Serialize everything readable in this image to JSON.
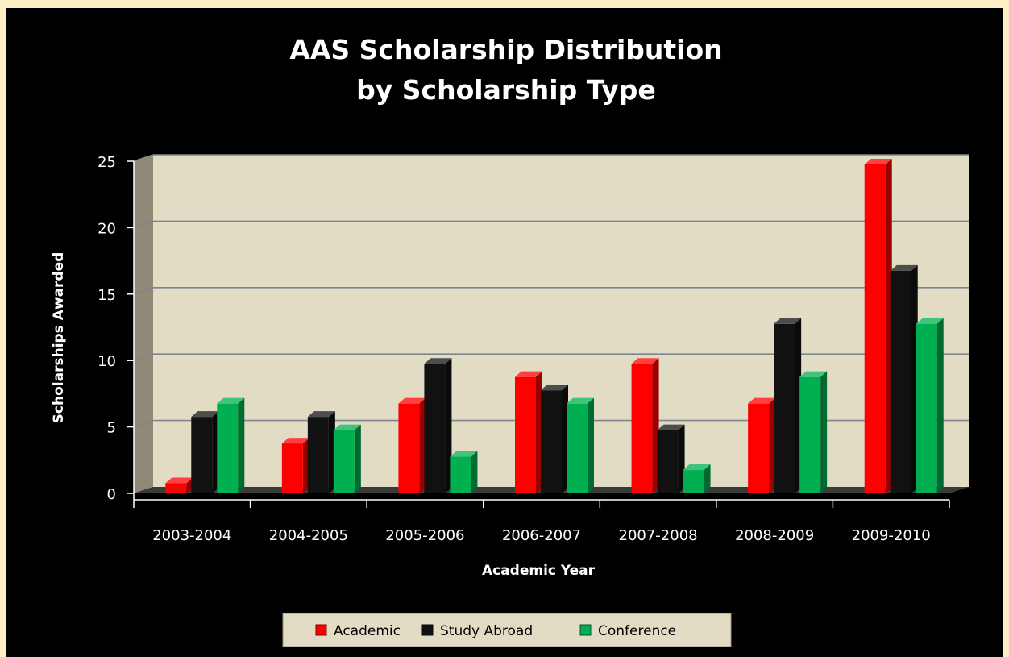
{
  "chart_data": {
    "type": "bar",
    "title": [
      "AAS Scholarship Distribution",
      "by Scholarship Type"
    ],
    "xlabel": "Academic Year",
    "ylabel": "Scholarships Awarded",
    "categories": [
      "2003-2004",
      "2004-2005",
      "2005-2006",
      "2006-2007",
      "2007-2008",
      "2008-2009",
      "2009-2010"
    ],
    "ylim": [
      0,
      25
    ],
    "yticks": [
      0,
      5,
      10,
      15,
      20,
      25
    ],
    "grid": true,
    "legend_position": "bottom",
    "series": [
      {
        "name": "Academic",
        "color": "#ff0000",
        "values": [
          1,
          4,
          7,
          9,
          10,
          7,
          25
        ]
      },
      {
        "name": "Study Abroad",
        "color": "#111111",
        "values": [
          6,
          6,
          10,
          8,
          5,
          13,
          17
        ]
      },
      {
        "name": "Conference",
        "color": "#00b050",
        "values": [
          7,
          5,
          3,
          7,
          2,
          9,
          13
        ]
      }
    ],
    "plot_background": "#e2dcc5",
    "page_background": "#000000"
  }
}
